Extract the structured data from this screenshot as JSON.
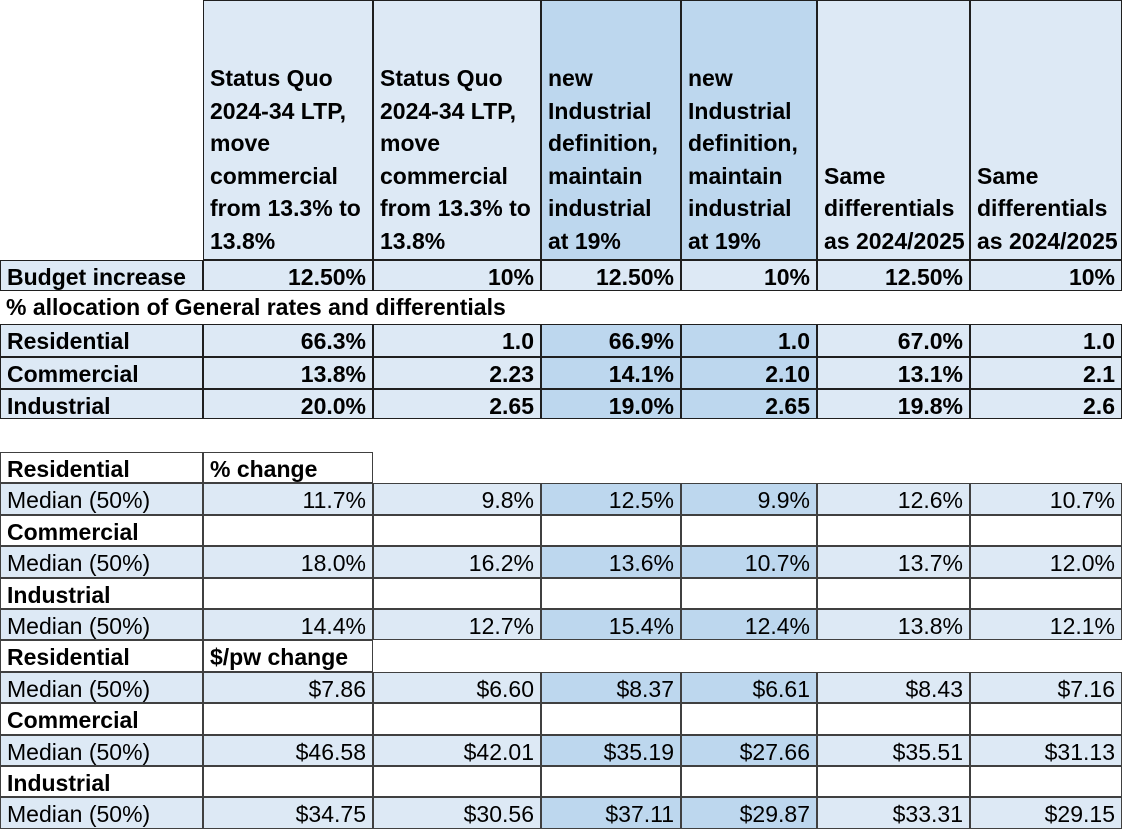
{
  "headers": [
    "Status Quo 2024-34 LTP, move commercial from 13.3% to 13.8%",
    "Status Quo 2024-34 LTP, move commercial from 13.3% to 13.8%",
    "new Industrial definition, maintain industrial at 19%",
    "new Industrial definition, maintain industrial at 19%",
    "Same differentials as 2024/2025",
    "Same differentials as 2024/2025"
  ],
  "budget": {
    "label": "Budget increase",
    "values": [
      "12.50%",
      "10%",
      "12.50%",
      "10%",
      "12.50%",
      "10%"
    ]
  },
  "allocation_title": "% allocation of General rates and differentials",
  "allocation": [
    {
      "label": "Residential",
      "values": [
        "66.3%",
        "1.0",
        "66.9%",
        "1.0",
        "67.0%",
        "1.0"
      ]
    },
    {
      "label": "Commercial",
      "values": [
        "13.8%",
        "2.23",
        "14.1%",
        "2.10",
        "13.1%",
        "2.1"
      ]
    },
    {
      "label": "Industrial",
      "values": [
        "20.0%",
        "2.65",
        "19.0%",
        "2.65",
        "19.8%",
        "2.6"
      ]
    }
  ],
  "pct_change": {
    "title": "% change",
    "groups": [
      {
        "label": "Residential",
        "row_label": "Median (50%)",
        "values": [
          "11.7%",
          "9.8%",
          "12.5%",
          "9.9%",
          "12.6%",
          "10.7%"
        ]
      },
      {
        "label": "Commercial",
        "row_label": "Median (50%)",
        "values": [
          "18.0%",
          "16.2%",
          "13.6%",
          "10.7%",
          "13.7%",
          "12.0%"
        ]
      },
      {
        "label": "Industrial",
        "row_label": "Median (50%)",
        "values": [
          "14.4%",
          "12.7%",
          "15.4%",
          "12.4%",
          "13.8%",
          "12.1%"
        ]
      }
    ]
  },
  "dollar_change": {
    "title": "$/pw change",
    "groups": [
      {
        "label": "Residential",
        "row_label": "Median (50%)",
        "values": [
          "$7.86",
          "$6.60",
          "$8.37",
          "$6.61",
          "$8.43",
          "$7.16"
        ]
      },
      {
        "label": "Commercial",
        "row_label": "Median (50%)",
        "values": [
          "$46.58",
          "$42.01",
          "$35.19",
          "$27.66",
          "$35.51",
          "$31.13"
        ]
      },
      {
        "label": "Industrial",
        "row_label": "Median (50%)",
        "values": [
          "$34.75",
          "$30.56",
          "$37.11",
          "$29.87",
          "$33.31",
          "$29.15"
        ]
      }
    ]
  },
  "colors": {
    "light": "#dde9f5",
    "medium": "#bdd7ee",
    "border": "#1f1f1f"
  }
}
